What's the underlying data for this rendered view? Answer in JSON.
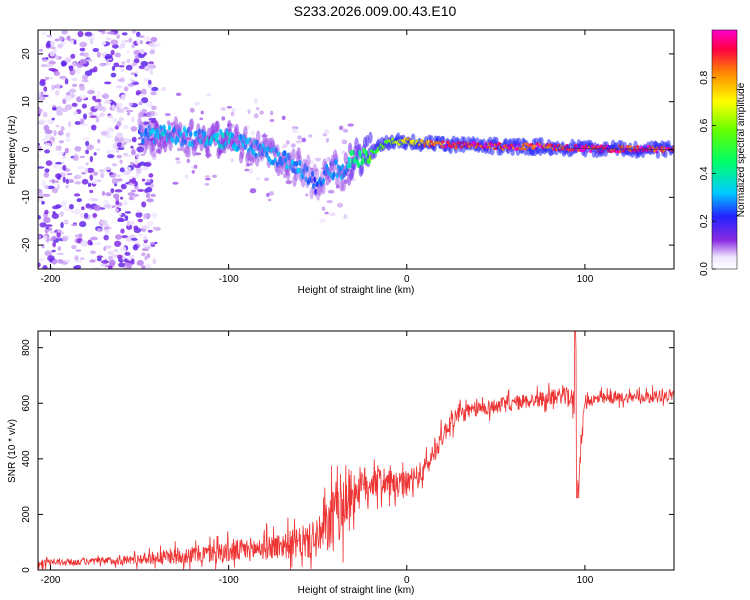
{
  "title": "S233.2026.009.00.43.E10",
  "colors": {
    "background": "#ffffff",
    "snr_line": "#ee3333",
    "axis": "#000000"
  },
  "colorbar": {
    "label": "Normalized spectral amplitude",
    "ticks": [
      {
        "value": 0.0,
        "label": "0.0"
      },
      {
        "value": 0.2,
        "label": "0.2"
      },
      {
        "value": 0.4,
        "label": "0.4"
      },
      {
        "value": 0.6,
        "label": "0.6"
      },
      {
        "value": 0.8,
        "label": "0.8"
      }
    ],
    "range": [
      0,
      1
    ]
  },
  "chart_data": [
    {
      "type": "heatmap",
      "title": "S233.2026.009.00.43.E10",
      "xlabel": "Height of straight line (km)",
      "ylabel": "Frequency (Hz)",
      "xlim": [
        -207,
        150
      ],
      "ylim": [
        -25,
        25
      ],
      "x_ticks": [
        {
          "value": -200,
          "label": "-200"
        },
        {
          "value": -100,
          "label": "-100"
        },
        {
          "value": 0,
          "label": "0"
        },
        {
          "value": 100,
          "label": "100"
        }
      ],
      "y_ticks": [
        {
          "value": -20,
          "label": "-20"
        },
        {
          "value": -10,
          "label": "-10"
        },
        {
          "value": 0,
          "label": "0"
        },
        {
          "value": 10,
          "label": "10"
        },
        {
          "value": 20,
          "label": "20"
        }
      ],
      "ridge": {
        "description": "dominant spectral line frequency vs height",
        "x": [
          -150,
          -140,
          -130,
          -120,
          -110,
          -100,
          -90,
          -80,
          -70,
          -60,
          -55,
          -50,
          -45,
          -40,
          -35,
          -30,
          -25,
          -20,
          -10,
          0,
          10,
          20,
          40,
          60,
          80,
          88,
          92,
          100,
          120,
          150
        ],
        "y": [
          3.0,
          3.2,
          2.8,
          2.5,
          2.2,
          2.2,
          1.0,
          -0.5,
          -2.0,
          -4.0,
          -5.5,
          -8.0,
          -5.0,
          -4.0,
          -5.0,
          -1.5,
          -2.0,
          -0.5,
          1.5,
          1.8,
          1.2,
          1.0,
          0.8,
          0.6,
          0.6,
          0.5,
          0.3,
          0.2,
          0.1,
          0.0
        ],
        "amplitude": [
          0.25,
          0.35,
          0.3,
          0.3,
          0.35,
          0.35,
          0.3,
          0.3,
          0.3,
          0.3,
          0.25,
          0.25,
          0.3,
          0.3,
          0.3,
          0.45,
          0.5,
          0.55,
          0.6,
          0.7,
          0.8,
          0.9,
          0.95,
          0.95,
          0.9,
          0.85,
          0.9,
          0.95,
          0.95,
          0.95
        ]
      },
      "noise_region": {
        "x_from": -207,
        "x_to": -150,
        "y_from": -25,
        "y_to": 25,
        "amplitude": 0.1
      }
    },
    {
      "type": "line",
      "xlabel": "Height of straight line (km)",
      "ylabel": "SNR (10 * v/v)",
      "xlim": [
        -207,
        150
      ],
      "ylim": [
        0,
        860
      ],
      "x_ticks": [
        {
          "value": -200,
          "label": "-200"
        },
        {
          "value": -100,
          "label": "-100"
        },
        {
          "value": 0,
          "label": "0"
        },
        {
          "value": 100,
          "label": "100"
        }
      ],
      "y_ticks": [
        {
          "value": 0,
          "label": "0"
        },
        {
          "value": 200,
          "label": "200"
        },
        {
          "value": 400,
          "label": "400"
        },
        {
          "value": 600,
          "label": "600"
        },
        {
          "value": 800,
          "label": "800"
        }
      ],
      "series": [
        {
          "name": "SNR",
          "color": "#ee3333",
          "x": [
            -207,
            -180,
            -160,
            -150,
            -140,
            -120,
            -100,
            -80,
            -70,
            -60,
            -50,
            -45,
            -40,
            -35,
            -30,
            -25,
            -20,
            -15,
            -10,
            -5,
            0,
            5,
            10,
            15,
            20,
            25,
            30,
            40,
            50,
            60,
            70,
            80,
            90,
            94,
            95,
            96,
            100,
            120,
            140,
            150
          ],
          "y": [
            25,
            30,
            35,
            40,
            45,
            55,
            65,
            80,
            90,
            95,
            110,
            150,
            200,
            250,
            280,
            300,
            320,
            320,
            310,
            300,
            310,
            330,
            360,
            420,
            480,
            540,
            560,
            580,
            590,
            600,
            610,
            620,
            630,
            600,
            700,
            300,
            610,
            620,
            625,
            630
          ],
          "noise_amplitude": [
            15,
            15,
            20,
            25,
            30,
            40,
            50,
            55,
            60,
            70,
            90,
            120,
            150,
            150,
            110,
            90,
            80,
            70,
            60,
            60,
            60,
            55,
            55,
            50,
            45,
            45,
            40,
            35,
            35,
            35,
            35,
            35,
            35,
            60,
            150,
            60,
            30,
            25,
            25,
            25
          ]
        }
      ]
    }
  ]
}
